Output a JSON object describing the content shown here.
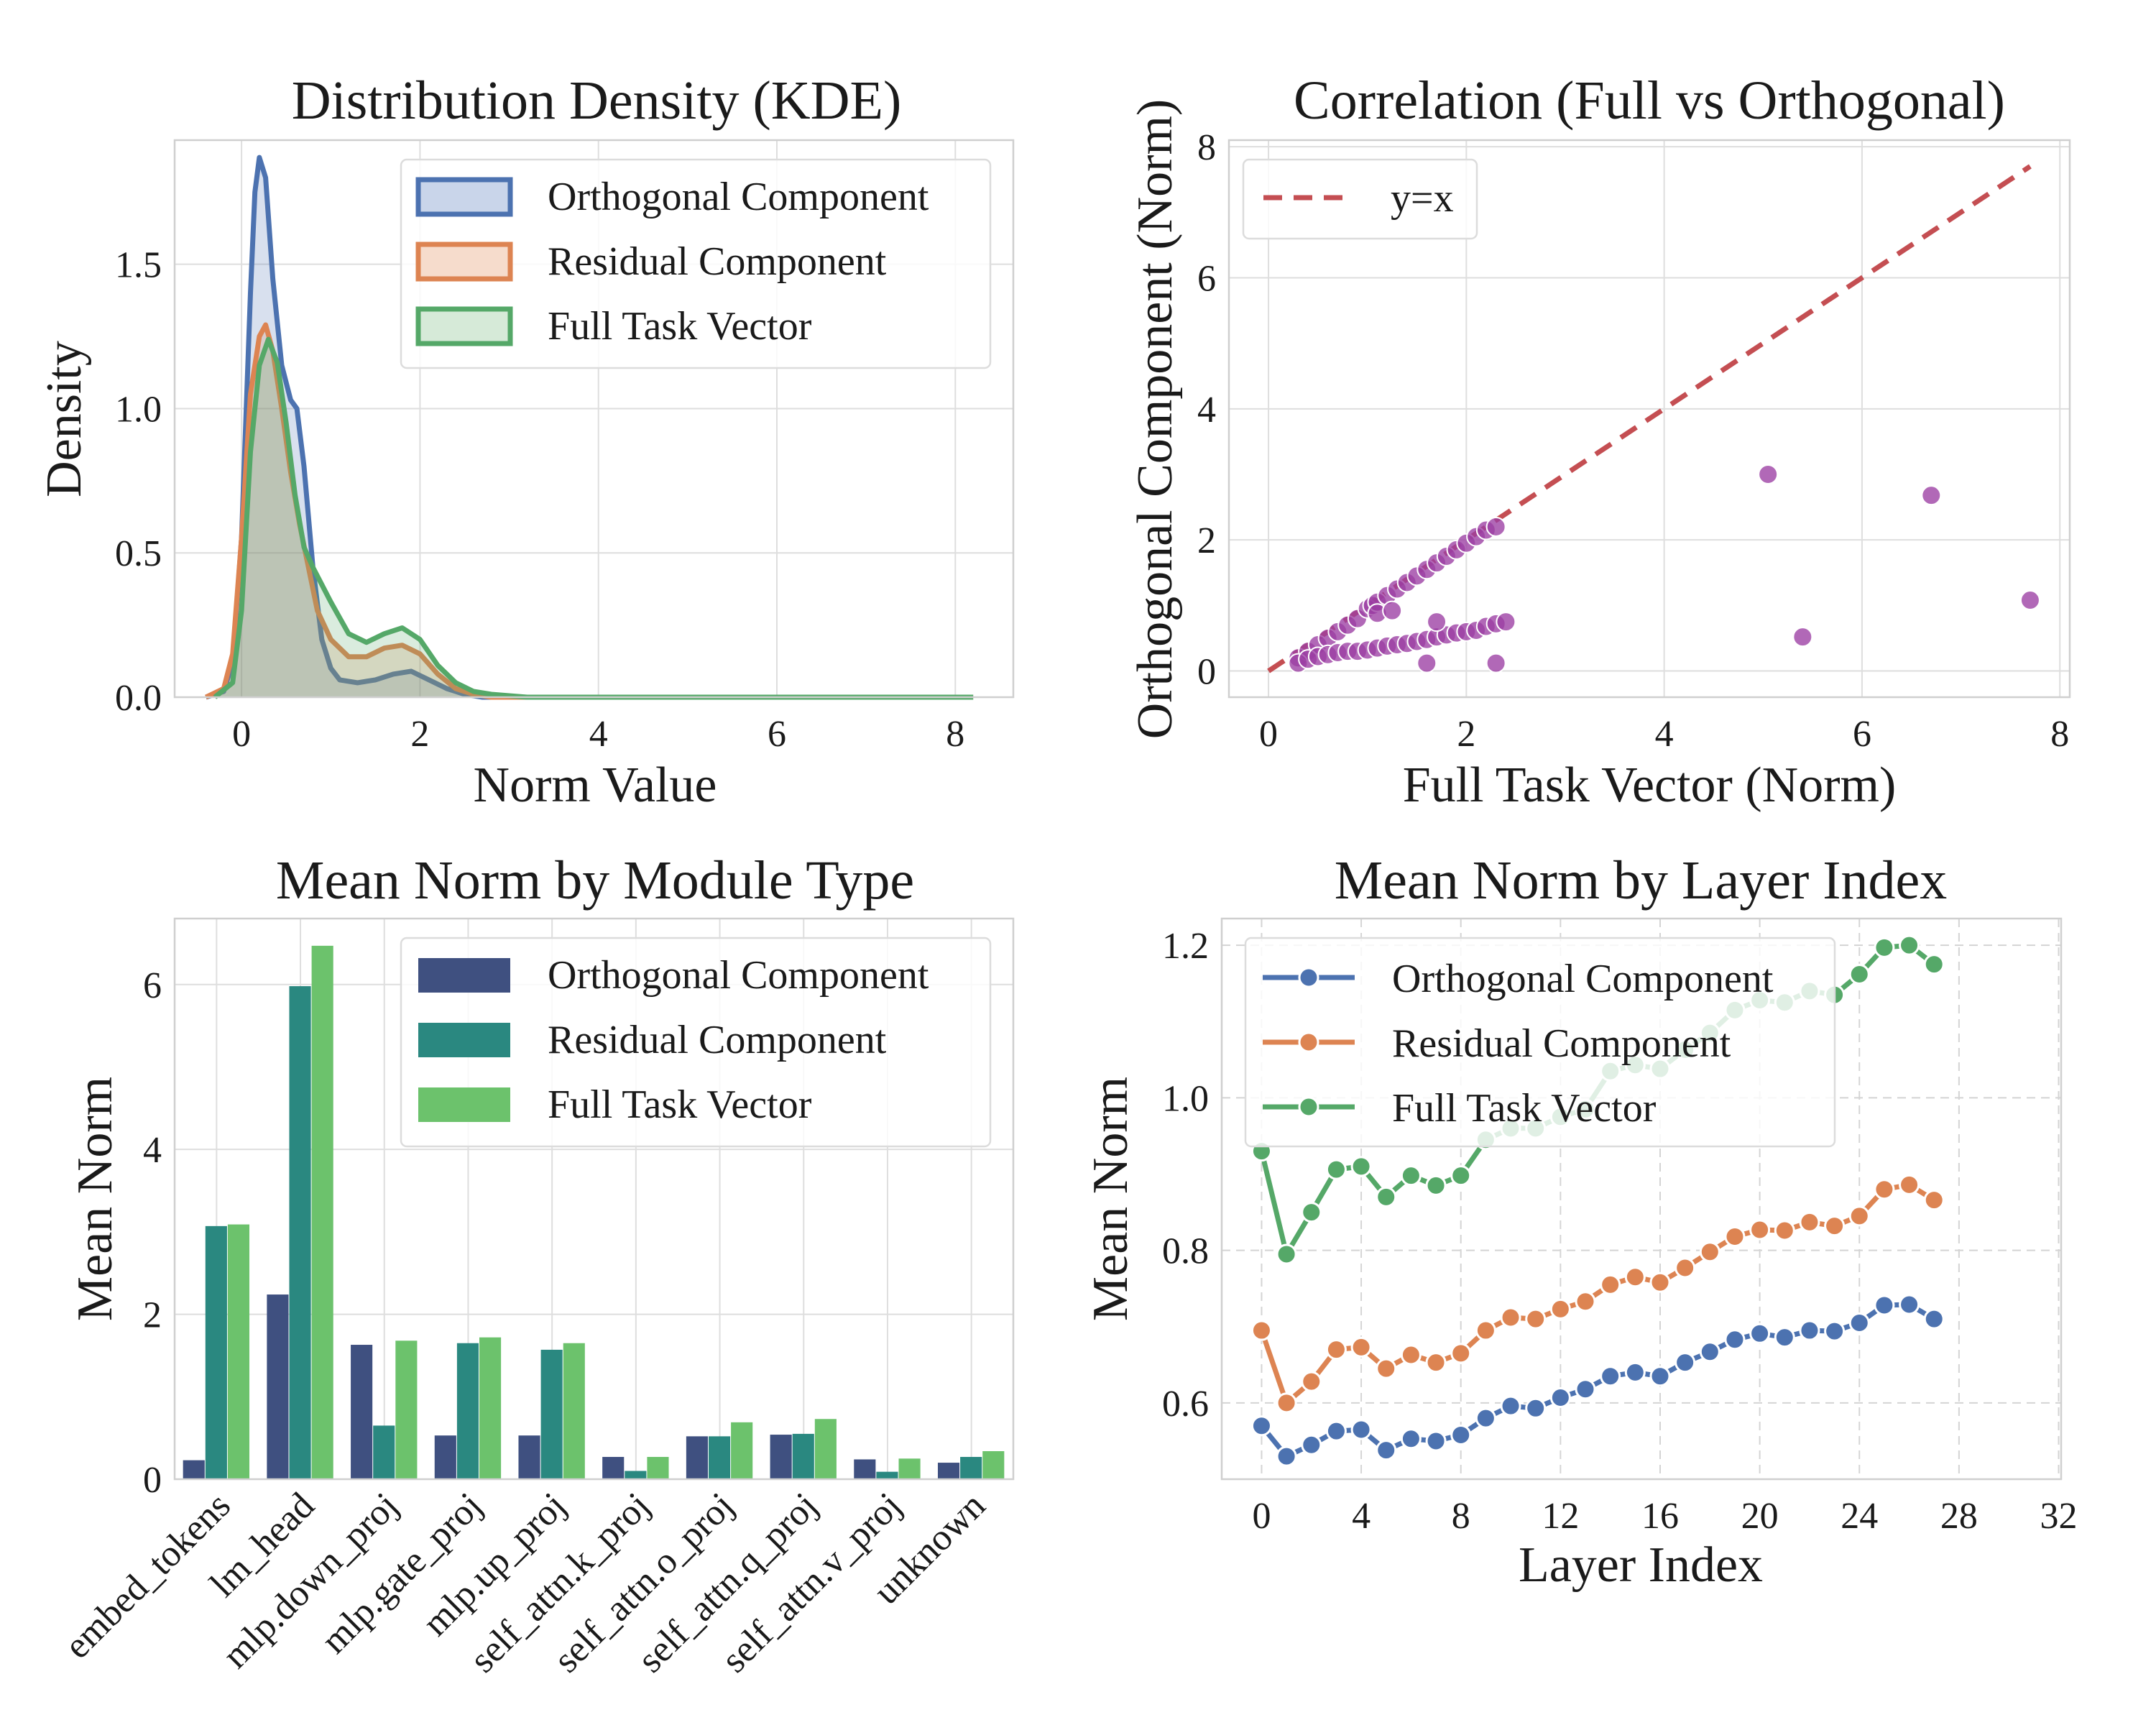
{
  "figure": {
    "title": ""
  },
  "chart_data": [
    {
      "type": "area",
      "title": "Distribution Density (KDE)",
      "xlabel": "Norm Value",
      "ylabel": "Density",
      "xlim": [
        -0.75,
        8.65
      ],
      "ylim": [
        0,
        1.93
      ],
      "xticks": [
        0,
        2,
        4,
        6,
        8
      ],
      "yticks": [
        0.0,
        0.5,
        1.0,
        1.5
      ],
      "ytick_labels": [
        "0.0",
        "0.5",
        "1.0",
        "1.5"
      ],
      "legend_position": "top-right",
      "series": [
        {
          "name": "Orthogonal Component",
          "color": "#4C72B0",
          "fill": "#c9d5ea",
          "x": [
            -0.4,
            -0.2,
            -0.1,
            0.0,
            0.1,
            0.15,
            0.2,
            0.27,
            0.35,
            0.45,
            0.55,
            0.62,
            0.7,
            0.8,
            0.9,
            1.0,
            1.1,
            1.3,
            1.5,
            1.7,
            1.9,
            2.1,
            2.3,
            2.5,
            2.7,
            8.2
          ],
          "y": [
            0.0,
            0.02,
            0.12,
            0.55,
            1.4,
            1.75,
            1.87,
            1.8,
            1.45,
            1.15,
            1.03,
            1.0,
            0.8,
            0.45,
            0.2,
            0.1,
            0.06,
            0.05,
            0.06,
            0.08,
            0.09,
            0.06,
            0.03,
            0.01,
            0.0,
            0.0
          ]
        },
        {
          "name": "Residual Component",
          "color": "#DD8452",
          "fill": "#f6dccc",
          "x": [
            -0.4,
            -0.2,
            -0.1,
            0.0,
            0.1,
            0.2,
            0.27,
            0.35,
            0.45,
            0.55,
            0.65,
            0.75,
            0.85,
            1.0,
            1.2,
            1.4,
            1.6,
            1.8,
            2.0,
            2.2,
            2.4,
            2.6,
            2.8,
            8.2
          ],
          "y": [
            0.0,
            0.03,
            0.15,
            0.55,
            1.05,
            1.25,
            1.29,
            1.2,
            1.0,
            0.78,
            0.6,
            0.45,
            0.3,
            0.2,
            0.14,
            0.14,
            0.17,
            0.18,
            0.15,
            0.08,
            0.03,
            0.01,
            0.0,
            0.0
          ]
        },
        {
          "name": "Full Task Vector",
          "color": "#55A868",
          "fill": "#d6ead8",
          "x": [
            -0.3,
            -0.1,
            0.0,
            0.1,
            0.2,
            0.3,
            0.4,
            0.5,
            0.6,
            0.7,
            0.8,
            1.0,
            1.2,
            1.4,
            1.6,
            1.8,
            2.0,
            2.2,
            2.4,
            2.6,
            2.8,
            3.2,
            8.2
          ],
          "y": [
            0.0,
            0.05,
            0.3,
            0.85,
            1.15,
            1.24,
            1.16,
            0.95,
            0.7,
            0.52,
            0.45,
            0.33,
            0.22,
            0.19,
            0.22,
            0.24,
            0.2,
            0.11,
            0.05,
            0.02,
            0.01,
            0.0,
            0.0
          ]
        }
      ]
    },
    {
      "type": "scatter",
      "title": "Correlation (Full vs Orthogonal)",
      "xlabel": "Full Task Vector (Norm)",
      "ylabel": "Orthogonal Component (Norm)",
      "xlim": [
        -0.4,
        8.1
      ],
      "ylim": [
        -0.4,
        8.1
      ],
      "xticks": [
        0,
        2,
        4,
        6,
        8
      ],
      "yticks": [
        0,
        2,
        4,
        6,
        8
      ],
      "legend_position": "top-left",
      "reference_line": {
        "name": "y=x",
        "from": [
          0,
          0
        ],
        "to": [
          7.7,
          7.7
        ],
        "color": "#C44E52"
      },
      "point_color": "#9b3ea3",
      "points": [
        [
          0.3,
          0.2
        ],
        [
          0.4,
          0.3
        ],
        [
          0.5,
          0.4
        ],
        [
          0.6,
          0.5
        ],
        [
          0.7,
          0.6
        ],
        [
          0.8,
          0.7
        ],
        [
          0.9,
          0.8
        ],
        [
          1.0,
          0.95
        ],
        [
          1.05,
          1.0
        ],
        [
          1.1,
          1.05
        ],
        [
          1.2,
          1.15
        ],
        [
          1.3,
          1.25
        ],
        [
          1.4,
          1.35
        ],
        [
          1.5,
          1.45
        ],
        [
          1.6,
          1.55
        ],
        [
          1.7,
          1.65
        ],
        [
          1.8,
          1.75
        ],
        [
          1.9,
          1.85
        ],
        [
          2.0,
          1.95
        ],
        [
          2.1,
          2.05
        ],
        [
          2.2,
          2.15
        ],
        [
          2.3,
          2.2
        ],
        [
          0.3,
          0.12
        ],
        [
          0.4,
          0.18
        ],
        [
          0.5,
          0.22
        ],
        [
          0.6,
          0.25
        ],
        [
          0.7,
          0.28
        ],
        [
          0.8,
          0.3
        ],
        [
          0.9,
          0.3
        ],
        [
          1.0,
          0.32
        ],
        [
          1.1,
          0.35
        ],
        [
          1.2,
          0.38
        ],
        [
          1.3,
          0.4
        ],
        [
          1.4,
          0.42
        ],
        [
          1.5,
          0.45
        ],
        [
          1.6,
          0.48
        ],
        [
          1.7,
          0.52
        ],
        [
          1.8,
          0.55
        ],
        [
          1.9,
          0.58
        ],
        [
          2.0,
          0.6
        ],
        [
          2.1,
          0.62
        ],
        [
          2.2,
          0.68
        ],
        [
          2.3,
          0.72
        ],
        [
          2.4,
          0.75
        ],
        [
          1.1,
          0.88
        ],
        [
          1.25,
          0.92
        ],
        [
          1.7,
          0.75
        ],
        [
          1.6,
          0.12
        ],
        [
          2.3,
          0.12
        ],
        [
          5.05,
          3.0
        ],
        [
          6.7,
          2.68
        ],
        [
          7.7,
          1.08
        ],
        [
          5.4,
          0.52
        ]
      ]
    },
    {
      "type": "bar",
      "title": "Mean Norm by Module Type",
      "xlabel": "",
      "ylabel": "Mean Norm",
      "ylim": [
        0,
        6.8
      ],
      "yticks": [
        0,
        2,
        4,
        6
      ],
      "legend_position": "top-right",
      "categories": [
        "embed_tokens",
        "lm_head",
        "mlp.down_proj",
        "mlp.gate_proj",
        "mlp.up_proj",
        "self_attn.k_proj",
        "self_attn.o_proj",
        "self_attn.q_proj",
        "self_attn.v_proj",
        "unknown"
      ],
      "series": [
        {
          "name": "Orthogonal Component",
          "color": "#3f5080",
          "values": [
            0.23,
            2.24,
            1.63,
            0.53,
            0.53,
            0.27,
            0.52,
            0.54,
            0.24,
            0.2
          ]
        },
        {
          "name": "Residual Component",
          "color": "#2a8880",
          "values": [
            3.07,
            5.98,
            0.65,
            1.65,
            1.57,
            0.1,
            0.52,
            0.55,
            0.09,
            0.27
          ]
        },
        {
          "name": "Full Task Vector",
          "color": "#6cc26c",
          "values": [
            3.09,
            6.47,
            1.68,
            1.72,
            1.65,
            0.27,
            0.69,
            0.73,
            0.25,
            0.34
          ]
        }
      ]
    },
    {
      "type": "line",
      "title": "Mean Norm by Layer Index",
      "xlabel": "Layer Index",
      "ylabel": "Mean Norm",
      "xlim": [
        -1.6,
        32.1
      ],
      "ylim": [
        0.5,
        1.235
      ],
      "xticks": [
        0,
        4,
        8,
        12,
        16,
        20,
        24,
        28,
        32
      ],
      "yticks": [
        0.6,
        0.8,
        1.0,
        1.2
      ],
      "ytick_labels": [
        "0.6",
        "0.8",
        "1.0",
        "1.2"
      ],
      "legend_position": "top-left",
      "x": [
        0,
        1,
        2,
        3,
        4,
        5,
        6,
        7,
        8,
        9,
        10,
        11,
        12,
        13,
        14,
        15,
        16,
        17,
        18,
        19,
        20,
        21,
        22,
        23,
        24,
        25,
        26,
        27
      ],
      "series": [
        {
          "name": "Orthogonal Component",
          "color": "#4C72B0",
          "values": [
            0.57,
            0.53,
            0.545,
            0.563,
            0.565,
            0.538,
            0.553,
            0.55,
            0.558,
            0.58,
            0.596,
            0.593,
            0.607,
            0.618,
            0.635,
            0.64,
            0.635,
            0.653,
            0.667,
            0.683,
            0.691,
            0.686,
            0.695,
            0.694,
            0.705,
            0.728,
            0.729,
            0.71
          ]
        },
        {
          "name": "Residual Component",
          "color": "#DD8452",
          "values": [
            0.695,
            0.6,
            0.628,
            0.67,
            0.673,
            0.645,
            0.663,
            0.653,
            0.665,
            0.695,
            0.712,
            0.71,
            0.723,
            0.733,
            0.755,
            0.765,
            0.758,
            0.777,
            0.798,
            0.818,
            0.827,
            0.826,
            0.837,
            0.832,
            0.845,
            0.88,
            0.886,
            0.866
          ]
        },
        {
          "name": "Full Task Vector",
          "color": "#55A868",
          "values": [
            0.93,
            0.795,
            0.85,
            0.906,
            0.91,
            0.87,
            0.898,
            0.885,
            0.898,
            0.945,
            0.96,
            0.96,
            0.975,
            0.985,
            1.035,
            1.043,
            1.038,
            1.063,
            1.085,
            1.115,
            1.128,
            1.125,
            1.14,
            1.135,
            1.162,
            1.197,
            1.2,
            1.175
          ]
        }
      ]
    }
  ]
}
